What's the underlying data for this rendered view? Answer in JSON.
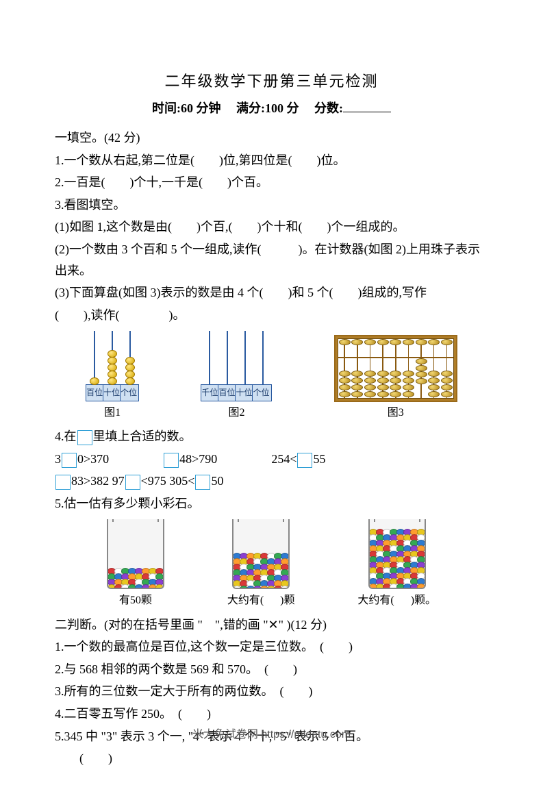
{
  "title": "二年级数学下册第三单元检测",
  "meta": {
    "time_label": "时间:60 分钟",
    "full_label": "满分:100 分",
    "score_label": "分数:"
  },
  "sec1": {
    "heading": "一填空。(42 分)",
    "q1": "1.一个数从右起,第二位是(　　)位,第四位是(　　)位。",
    "q2": "2.一百是(　　)个十,一千是(　　)个百。",
    "q3": "3.看图填空。",
    "q3_1": "(1)如图 1,这个数是由(　　)个百,(　　)个十和(　　)个一组成的。",
    "q3_2": "(2)一个数由 3 个百和 5 个一组成,读作(　　　)。在计数器(如图 2)上用珠子表示出来。",
    "q3_3a": "(3)下面算盘(如图 3)表示的数是由 4 个(　　)和 5 个(　　)组成的,写作",
    "q3_3b": "(　　),读作(　　　　)。",
    "fig1_caption": "图1",
    "fig2_caption": "图2",
    "fig3_caption": "图3",
    "q4": "4.在",
    "q4b": "里填上合适的数。",
    "q4_l1a": "3",
    "q4_l1b": "0>370",
    "q4_l1c": "48>790",
    "q4_l1d": "254<",
    "q4_l1e": "55",
    "q4_l2a": "83>382 97",
    "q4_l2b": "<975 305<",
    "q4_l2c": "50",
    "q5": "5.估一估有多少颗小彩石。",
    "stone_c1": "有50颗",
    "stone_c2a": "大约有(",
    "stone_c2b": ")颗",
    "stone_c3a": "大约有(",
    "stone_c3b": ")颗。"
  },
  "sec2": {
    "heading": "二判断。(对的在括号里画 \"　\",错的画 \"✕\" )(12 分)",
    "q1": "1.一个数的最高位是百位,这个数一定是三位数。　(　　)",
    "q2": "2.与 568 相邻的两个数是 569 和 570。　(　　)",
    "q3": "3.所有的三位数一定大于所有的两位数。　(　　)",
    "q4": "4.二百零五写作 250。　(　　)",
    "q5a": "5.345 中 \"3\" 表示 3 个一, \"4\" 表示 4 个十, \"5\" 表示 5 个百。",
    "q5b": "　　(　　)"
  },
  "footer": "米大兔试卷网 https://midatu.com",
  "counter1": {
    "labels": [
      "百位",
      "十位",
      "个位"
    ],
    "beads": [
      1,
      5,
      4
    ],
    "base_bg": "#cfe0f2",
    "border": "#2a5aa0",
    "bead_fill": "#d4a600"
  },
  "counter2": {
    "labels": [
      "千位",
      "百位",
      "十位",
      "个位"
    ],
    "beads": [
      0,
      0,
      0,
      0
    ],
    "base_bg": "#cfe0f2",
    "border": "#2a5aa0"
  },
  "abacus": {
    "rods": 9,
    "top_down": [
      0,
      0,
      0,
      0,
      0,
      0,
      0,
      0,
      0
    ],
    "top_up": [
      1,
      1,
      1,
      1,
      1,
      1,
      1,
      1,
      1
    ],
    "bot_up": [
      0,
      0,
      0,
      0,
      0,
      0,
      4,
      0,
      0
    ],
    "bot_down": [
      4,
      4,
      4,
      4,
      4,
      4,
      0,
      4,
      4
    ],
    "frame_color": "#9a6a1a",
    "bead_fill": "#b58a1a"
  },
  "beakers": {
    "stone_colors": [
      "#d93838",
      "#2e7bd1",
      "#e8c71f",
      "#34a853",
      "#ff9d2e",
      "#ffffff",
      "#8a3fd1"
    ],
    "fills": [
      28,
      50,
      85
    ]
  }
}
